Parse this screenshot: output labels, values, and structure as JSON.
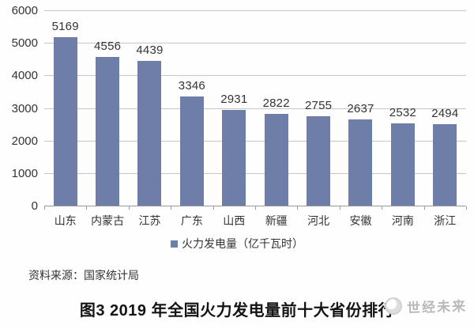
{
  "chart_data": {
    "type": "bar",
    "title": "图3 2019 年全国火力发电量前十大省份排行",
    "categories": [
      "山东",
      "内蒙古",
      "江苏",
      "广东",
      "山西",
      "新疆",
      "河北",
      "安徽",
      "河南",
      "浙江"
    ],
    "values": [
      5169,
      4556,
      4439,
      3346,
      2931,
      2822,
      2755,
      2637,
      2532,
      2494
    ],
    "legend": "火力发电量（亿千瓦时）",
    "ylabel": "",
    "xlabel": "",
    "ylim": [
      0,
      6000
    ],
    "ytick_step": 1000,
    "yticks": [
      0,
      1000,
      2000,
      3000,
      4000,
      5000,
      6000
    ],
    "grid": true,
    "legend_position": "bottom",
    "data_labels": true
  },
  "source_note": "资料来源：国家统计局",
  "watermark_text": "世经未来",
  "colors": {
    "bar": "#6f7da9",
    "grid": "#c6c6c6",
    "axis": "#9a9a9a",
    "text": "#333333",
    "title": "#141414",
    "watermark": "#b9b9b9"
  }
}
